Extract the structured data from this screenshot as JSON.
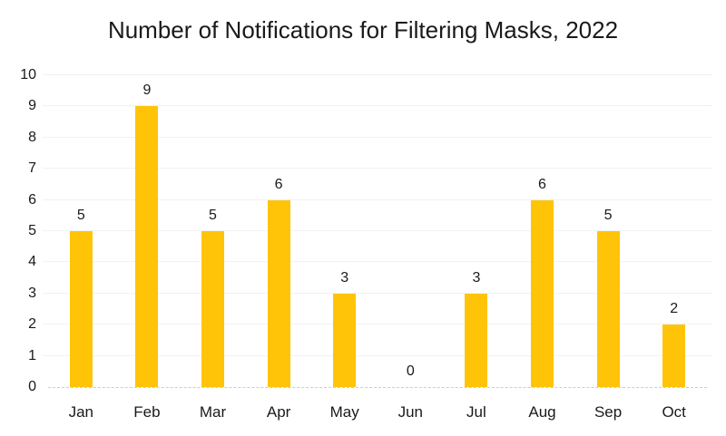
{
  "title": "Number of Notifications for Filtering Masks, 2022",
  "chart_data": {
    "type": "bar",
    "title": "Number of Notifications for Filtering Masks, 2022",
    "categories": [
      "Jan",
      "Feb",
      "Mar",
      "Apr",
      "May",
      "Jun",
      "Jul",
      "Aug",
      "Sep",
      "Oct"
    ],
    "values": [
      5,
      9,
      5,
      6,
      3,
      0,
      3,
      6,
      5,
      2
    ],
    "xlabel": "",
    "ylabel": "",
    "ylim": [
      0,
      10
    ],
    "yticks": [
      0,
      1,
      2,
      3,
      4,
      5,
      6,
      7,
      8,
      9,
      10
    ],
    "grid": "horizontal-faint",
    "legend": "none",
    "data_labels": true,
    "bar_color": "#FFC408",
    "gridline_color": "#f2f2f2",
    "axisline_color": "#cccccc",
    "text_color": "#1a1a1a"
  }
}
